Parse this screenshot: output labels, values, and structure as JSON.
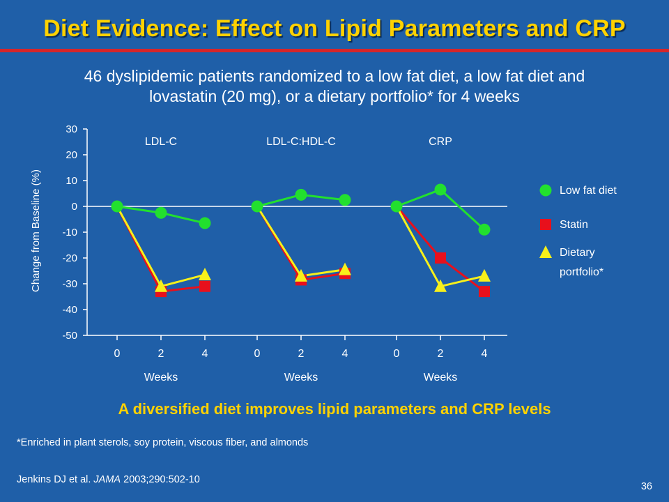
{
  "title": "Diet Evidence: Effect on Lipid Parameters and CRP",
  "subtitle": {
    "line1": "46 dyslipidemic patients randomized to a low fat diet, a low fat diet and",
    "line2": "lovastatin (20 mg), or a dietary portfolio* for 4 weeks"
  },
  "conclusion": "A diversified diet improves lipid parameters and CRP levels",
  "footnote": "*Enriched in plant sterols, soy protein, viscous fiber, and almonds",
  "reference": {
    "authors": "Jenkins DJ et al.",
    "journal": "JAMA",
    "details": "2003;290:502-10"
  },
  "page_number": "36",
  "colors": {
    "low_fat": "#22e02e",
    "statin": "#e8101c",
    "portfolio": "#f7f01a",
    "axis": "#ffffff"
  },
  "chart_data": {
    "type": "line",
    "ylabel": "Change from Baseline (%)",
    "ylim": [
      -50,
      30
    ],
    "yticks": [
      30,
      20,
      10,
      0,
      -10,
      -20,
      -30,
      -40,
      -50
    ],
    "x": [
      0,
      2,
      4
    ],
    "xlabel": "Weeks",
    "legend_position": "right",
    "legend": [
      {
        "label": "Low fat diet",
        "marker": "circle",
        "color": "#22e02e"
      },
      {
        "label": "Statin",
        "marker": "square",
        "color": "#e8101c"
      },
      {
        "label": "Dietary portfolio*",
        "marker": "triangle",
        "color": "#f7f01a"
      }
    ],
    "panels": [
      {
        "title": "LDL-C",
        "series": [
          {
            "name": "Low fat diet",
            "values": [
              0,
              -2.5,
              -6.5
            ]
          },
          {
            "name": "Statin",
            "values": [
              0,
              -33,
              -31
            ]
          },
          {
            "name": "Dietary portfolio*",
            "values": [
              0,
              -31,
              -26.5
            ]
          }
        ]
      },
      {
        "title": "LDL-C:HDL-C",
        "series": [
          {
            "name": "Low fat diet",
            "values": [
              0,
              4.5,
              2.5
            ]
          },
          {
            "name": "Statin",
            "values": [
              0,
              -28.5,
              -26
            ]
          },
          {
            "name": "Dietary portfolio*",
            "values": [
              0,
              -27,
              -24.5
            ]
          }
        ]
      },
      {
        "title": "CRP",
        "series": [
          {
            "name": "Low fat diet",
            "values": [
              0,
              6.5,
              -9
            ]
          },
          {
            "name": "Statin",
            "values": [
              0,
              -20,
              -33
            ]
          },
          {
            "name": "Dietary portfolio*",
            "values": [
              0,
              -31,
              -27
            ]
          }
        ]
      }
    ]
  }
}
